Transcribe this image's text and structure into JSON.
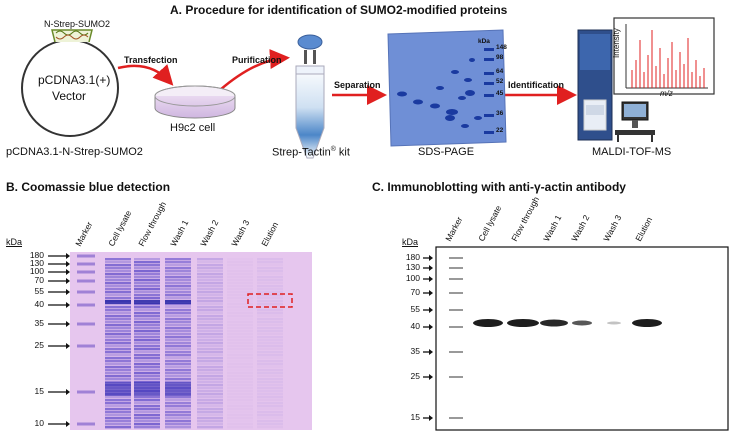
{
  "panel_a": {
    "title": "A. Procedure for identification of SUMO2-modified proteins",
    "plasmid_insert": "N-Strep-SUMO2",
    "plasmid_name_line1": "pCDNA3.1(+)",
    "plasmid_name_line2": "Vector",
    "plasmid_caption": "pCDNA3.1-N-Strep-SUMO2",
    "step_transfection": "Transfection",
    "cell_label": "H9c2 cell",
    "step_purification": "Purification",
    "kit_label_main": "Strep-Tactin",
    "kit_label_sup": "®",
    "kit_label_end": " kit",
    "step_separation": "Separation",
    "gel_label": "SDS-PAGE",
    "gel_kda_header": "kDa",
    "gel_markers": [
      "148",
      "98",
      "64",
      "52",
      "45",
      "36",
      "22"
    ],
    "step_identification": "Identification",
    "ms_label": "MALDI-TOF-MS",
    "ms_y_axis": "Intensity",
    "ms_x_axis": "m/z"
  },
  "panel_b": {
    "title": "B. Coomassie blue detection",
    "kda": "kDa",
    "lanes": [
      "Marker",
      "Cell lysate",
      "Flow through",
      "Wash 1",
      "Wash 2",
      "Wash 3",
      "Elution"
    ],
    "markers": [
      "180",
      "130",
      "100",
      "70",
      "55",
      "40",
      "35",
      "25",
      "15",
      "10"
    ]
  },
  "panel_c": {
    "title": "C. Immunoblotting with anti-γ-actin antibody",
    "kda": "kDa",
    "lanes": [
      "Marker",
      "Cell lysate",
      "Flow through",
      "Wash 1",
      "Wash 2",
      "Wash 3",
      "Elution"
    ],
    "markers": [
      "180",
      "130",
      "100",
      "70",
      "55",
      "40",
      "35",
      "25",
      "15"
    ]
  },
  "colors": {
    "arrow_red": "#e02020",
    "gel_blue": "#6f8fd6",
    "coomassie_bg": "#e6c6ee",
    "ms_peak": "#e02020"
  }
}
